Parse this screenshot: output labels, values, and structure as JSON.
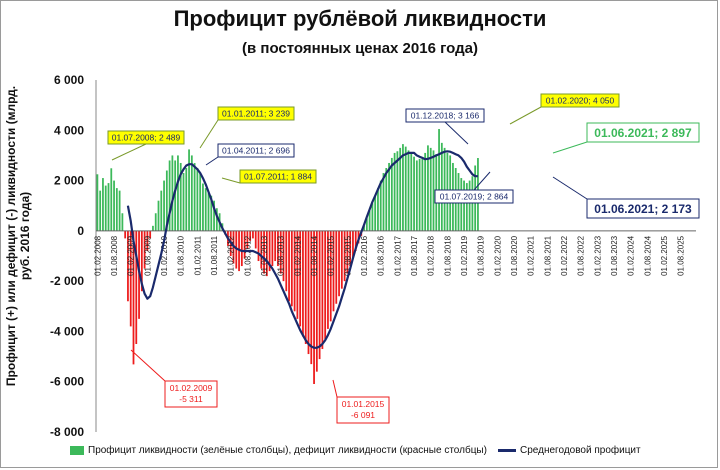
{
  "chart_data": {
    "type": "bar",
    "title": "Профицит рублёвой ликвидности",
    "subtitle": "(в постоянных ценах 2016 года)",
    "ylabel": "Профицит (+) или дефицит (-) ликвидности (млрд. руб. 2016 года)",
    "ylim": [
      -8000,
      6000
    ],
    "yticks": [
      "6 000",
      "4 000",
      "2 000",
      "0",
      "-2 000",
      "-4 000",
      "-6 000",
      "-8 000"
    ],
    "ytick_values": [
      6000,
      4000,
      2000,
      0,
      -2000,
      -4000,
      -6000,
      -8000
    ],
    "xticks": [
      "01.02.2008",
      "01.08.2008",
      "01.02.2009",
      "01.08.2009",
      "01.02.2010",
      "01.08.2010",
      "01.02.2011",
      "01.08.2011",
      "01.02.2012",
      "01.08.2012",
      "01.02.2013",
      "01.08.2013",
      "01.02.2014",
      "01.08.2014",
      "01.02.2015",
      "01.08.2015",
      "01.02.2016",
      "01.08.2016",
      "01.02.2017",
      "01.08.2017",
      "01.02.2018",
      "01.08.2018",
      "01.02.2019",
      "01.08.2019",
      "01.02.2020",
      "01.08.2020",
      "01.02.2021",
      "01.08.2021",
      "01.02.2022",
      "01.08.2022",
      "01.02.2023",
      "01.08.2023",
      "01.02.2024",
      "01.08.2024",
      "01.02.2025",
      "01.08.2025"
    ],
    "colors": {
      "surplus": "#3cb95a",
      "deficit": "#ee1c1c",
      "average": "#1a2a6c"
    },
    "series": [
      {
        "name": "Профицит ликвидности (зелёные столбцы), дефицит ликвидности (красные столбцы)",
        "type": "bar",
        "start": "2008-02",
        "step": "month",
        "values": [
          2250,
          1600,
          2100,
          1800,
          1900,
          2489,
          2000,
          1700,
          1600,
          700,
          -300,
          -2800,
          -3800,
          -5311,
          -4500,
          -3500,
          -2400,
          -1500,
          -800,
          -300,
          200,
          700,
          1200,
          1600,
          2000,
          2400,
          2800,
          3000,
          2800,
          3000,
          2700,
          2300,
          2500,
          3239,
          3000,
          2696,
          2500,
          2300,
          1884,
          1700,
          1500,
          1400,
          1200,
          900,
          700,
          300,
          -150,
          -600,
          -1000,
          -1300,
          -1500,
          -1600,
          -1400,
          -1100,
          -700,
          -400,
          -300,
          -700,
          -1200,
          -1500,
          -1700,
          -1800,
          -1600,
          -1400,
          -1200,
          -1400,
          -1700,
          -2000,
          -2400,
          -2800,
          -3000,
          -3200,
          -3500,
          -3800,
          -4200,
          -4500,
          -4900,
          -5300,
          -6091,
          -5600,
          -5100,
          -4700,
          -4300,
          -3900,
          -3600,
          -3200,
          -2900,
          -2600,
          -2300,
          -2000,
          -1700,
          -1400,
          -1100,
          -800,
          -500,
          -200,
          200,
          500,
          800,
          1100,
          1400,
          1700,
          2000,
          2300,
          2500,
          2700,
          2900,
          3100,
          3166,
          3300,
          3450,
          3350,
          3200,
          3100,
          2950,
          2800,
          2864,
          2900,
          3100,
          3400,
          3300,
          3200,
          3050,
          4050,
          3500,
          3300,
          3100,
          3000,
          2700,
          2500,
          2300,
          2100,
          2000,
          1900,
          2000,
          2173,
          2600,
          2897
        ],
        "color_rule": "positive green, negative red"
      },
      {
        "name": "Среднегодовой профицит",
        "type": "line",
        "start": "2009-01",
        "step": "month",
        "values": [
          1000,
          400,
          -400,
          -1000,
          -1600,
          -2100,
          -2500,
          -2700,
          -2600,
          -2250,
          -1800,
          -1350,
          -900,
          -400,
          200,
          700,
          1200,
          1600,
          1950,
          2250,
          2450,
          2600,
          2650,
          2650,
          2550,
          2450,
          2300,
          2100,
          1850,
          1550,
          1250,
          900,
          600,
          350,
          100,
          -100,
          -300,
          -450,
          -600,
          -700,
          -750,
          -800,
          -800,
          -800,
          -800,
          -800,
          -850,
          -900,
          -1000,
          -1100,
          -1200,
          -1350,
          -1500,
          -1700,
          -1900,
          -2150,
          -2400,
          -2650,
          -2900,
          -3200,
          -3450,
          -3700,
          -3950,
          -4150,
          -4350,
          -4500,
          -4600,
          -4650,
          -4650,
          -4600,
          -4500,
          -4350,
          -4150,
          -3900,
          -3600,
          -3300,
          -3000,
          -2650,
          -2300,
          -1900,
          -1500,
          -1100,
          -700,
          -350,
          -50,
          250,
          550,
          850,
          1150,
          1400,
          1650,
          1900,
          2100,
          2300,
          2450,
          2600,
          2700,
          2800,
          2900,
          3000,
          3050,
          3100,
          3100,
          3100,
          3000,
          2950,
          2900,
          2850,
          2864,
          2900,
          2950,
          3000,
          3050,
          3100,
          3150,
          3166,
          3150,
          3100,
          3050,
          3000,
          2900,
          2750,
          2550,
          2400,
          2250,
          2173,
          2173
        ]
      }
    ],
    "annotations": [
      {
        "text": "01.07.2008; 2 489",
        "style": "yellow"
      },
      {
        "text": "01.01.2011; 3 239",
        "style": "yellow"
      },
      {
        "text": "01.04.2011; 2 696",
        "style": "navy"
      },
      {
        "text": "01.07.2011; 1 884",
        "style": "yellow"
      },
      {
        "text": "01.02.2009\n-5 311",
        "style": "red"
      },
      {
        "text": "01.01.2015\n-6 091",
        "style": "red"
      },
      {
        "text": "01.12.2018; 3 166",
        "style": "navy"
      },
      {
        "text": "01.07.2019; 2 864",
        "style": "navy"
      },
      {
        "text": "01.02.2020; 4 050",
        "style": "yellow"
      },
      {
        "text": "01.06.2021; 2 897",
        "style": "green-big"
      },
      {
        "text": "01.06.2021; 2 173",
        "style": "navy-big"
      }
    ],
    "legend": [
      {
        "label": "Профицит ликвидности (зелёные столбцы), дефицит ликвидности (красные столбцы)",
        "marker": "bar"
      },
      {
        "label": "Среднегодовой профицит",
        "marker": "line"
      }
    ],
    "legend_position": "bottom",
    "grid": false
  }
}
